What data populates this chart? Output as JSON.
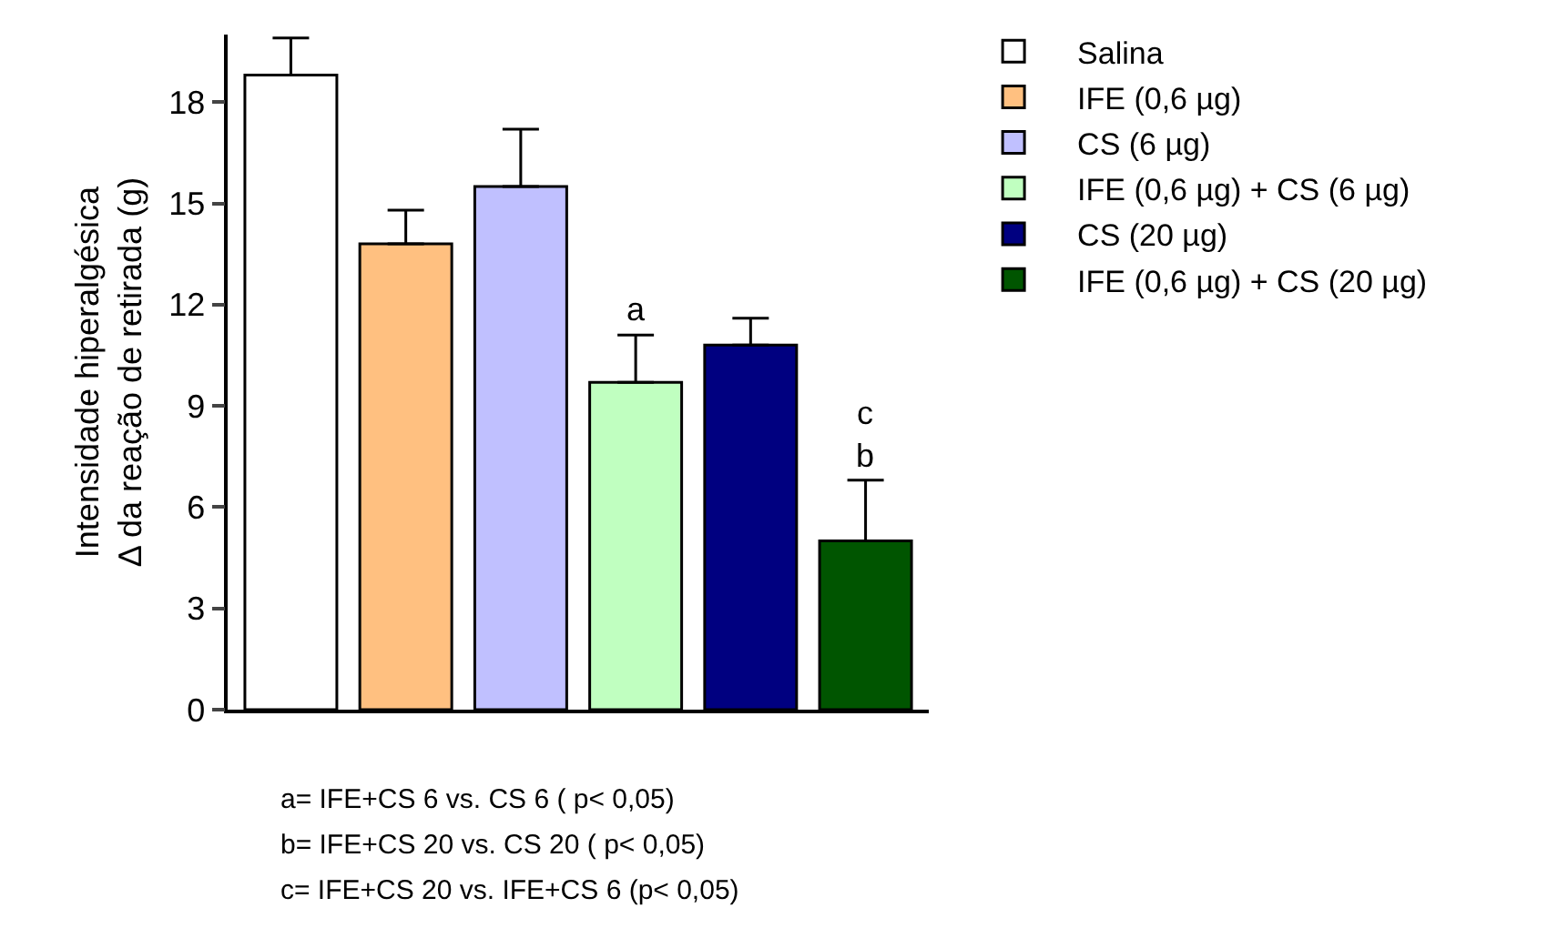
{
  "chart_data": {
    "type": "bar",
    "ylabel": "Intensidade hiperalgésica\nΔ da reação de retirada (g)",
    "categories": [
      null,
      null,
      null,
      null,
      null,
      null
    ],
    "series": [
      {
        "name": "Salina",
        "color": "#ffffff",
        "values": [
          18.8,
          null,
          null,
          null,
          null,
          null
        ],
        "errors": [
          [
            18.8,
            19.9
          ],
          null,
          null,
          null,
          null,
          null
        ]
      },
      {
        "name": "IFE (0,6 µg)",
        "color": "#ffc080",
        "values": [
          null,
          13.8,
          null,
          null,
          null,
          null
        ],
        "errors": [
          null,
          [
            13.8,
            14.8
          ],
          null,
          null,
          null,
          null
        ]
      },
      {
        "name": "CS (6 µg)",
        "color": "#c0c0ff",
        "values": [
          null,
          null,
          15.5,
          null,
          null,
          null
        ],
        "errors": [
          null,
          null,
          [
            15.5,
            17.2
          ],
          null,
          null,
          null
        ]
      },
      {
        "name": "IFE (0,6 µg) + CS (6 µg)",
        "color": "#c0ffc0",
        "values": [
          null,
          null,
          null,
          9.7,
          null,
          null
        ],
        "errors": [
          null,
          null,
          null,
          [
            9.7,
            11.1
          ],
          null,
          null
        ],
        "value_labels": [
          null,
          null,
          null,
          "a",
          null,
          null
        ]
      },
      {
        "name": "CS (20 µg)",
        "color": "#000080",
        "values": [
          null,
          null,
          null,
          null,
          10.8,
          null
        ],
        "errors": [
          null,
          null,
          null,
          null,
          [
            10.8,
            11.6
          ],
          null
        ]
      },
      {
        "name": "IFE (0,6 µg) + CS (20 µg)",
        "color": "#005500",
        "values": [
          null,
          null,
          null,
          null,
          null,
          5.0
        ],
        "errors": [
          null,
          null,
          null,
          null,
          null,
          [
            5.0,
            6.8
          ]
        ],
        "value_labels": [
          null,
          null,
          null,
          null,
          null,
          "c\nb"
        ]
      }
    ],
    "ylim": [
      0,
      20
    ],
    "yticks": [
      0,
      3,
      6,
      9,
      12,
      15,
      18
    ],
    "grid": false,
    "legend": "top right",
    "tick_labels": "y",
    "annotations": [
      "a= IFE+CS 6 vs. CS 6 ( p< 0,05)",
      "b= IFE+CS 20 vs. CS 20 ( p< 0,05)",
      "c= IFE+CS 20 vs. IFE+CS 6 (p< 0,05)"
    ]
  }
}
